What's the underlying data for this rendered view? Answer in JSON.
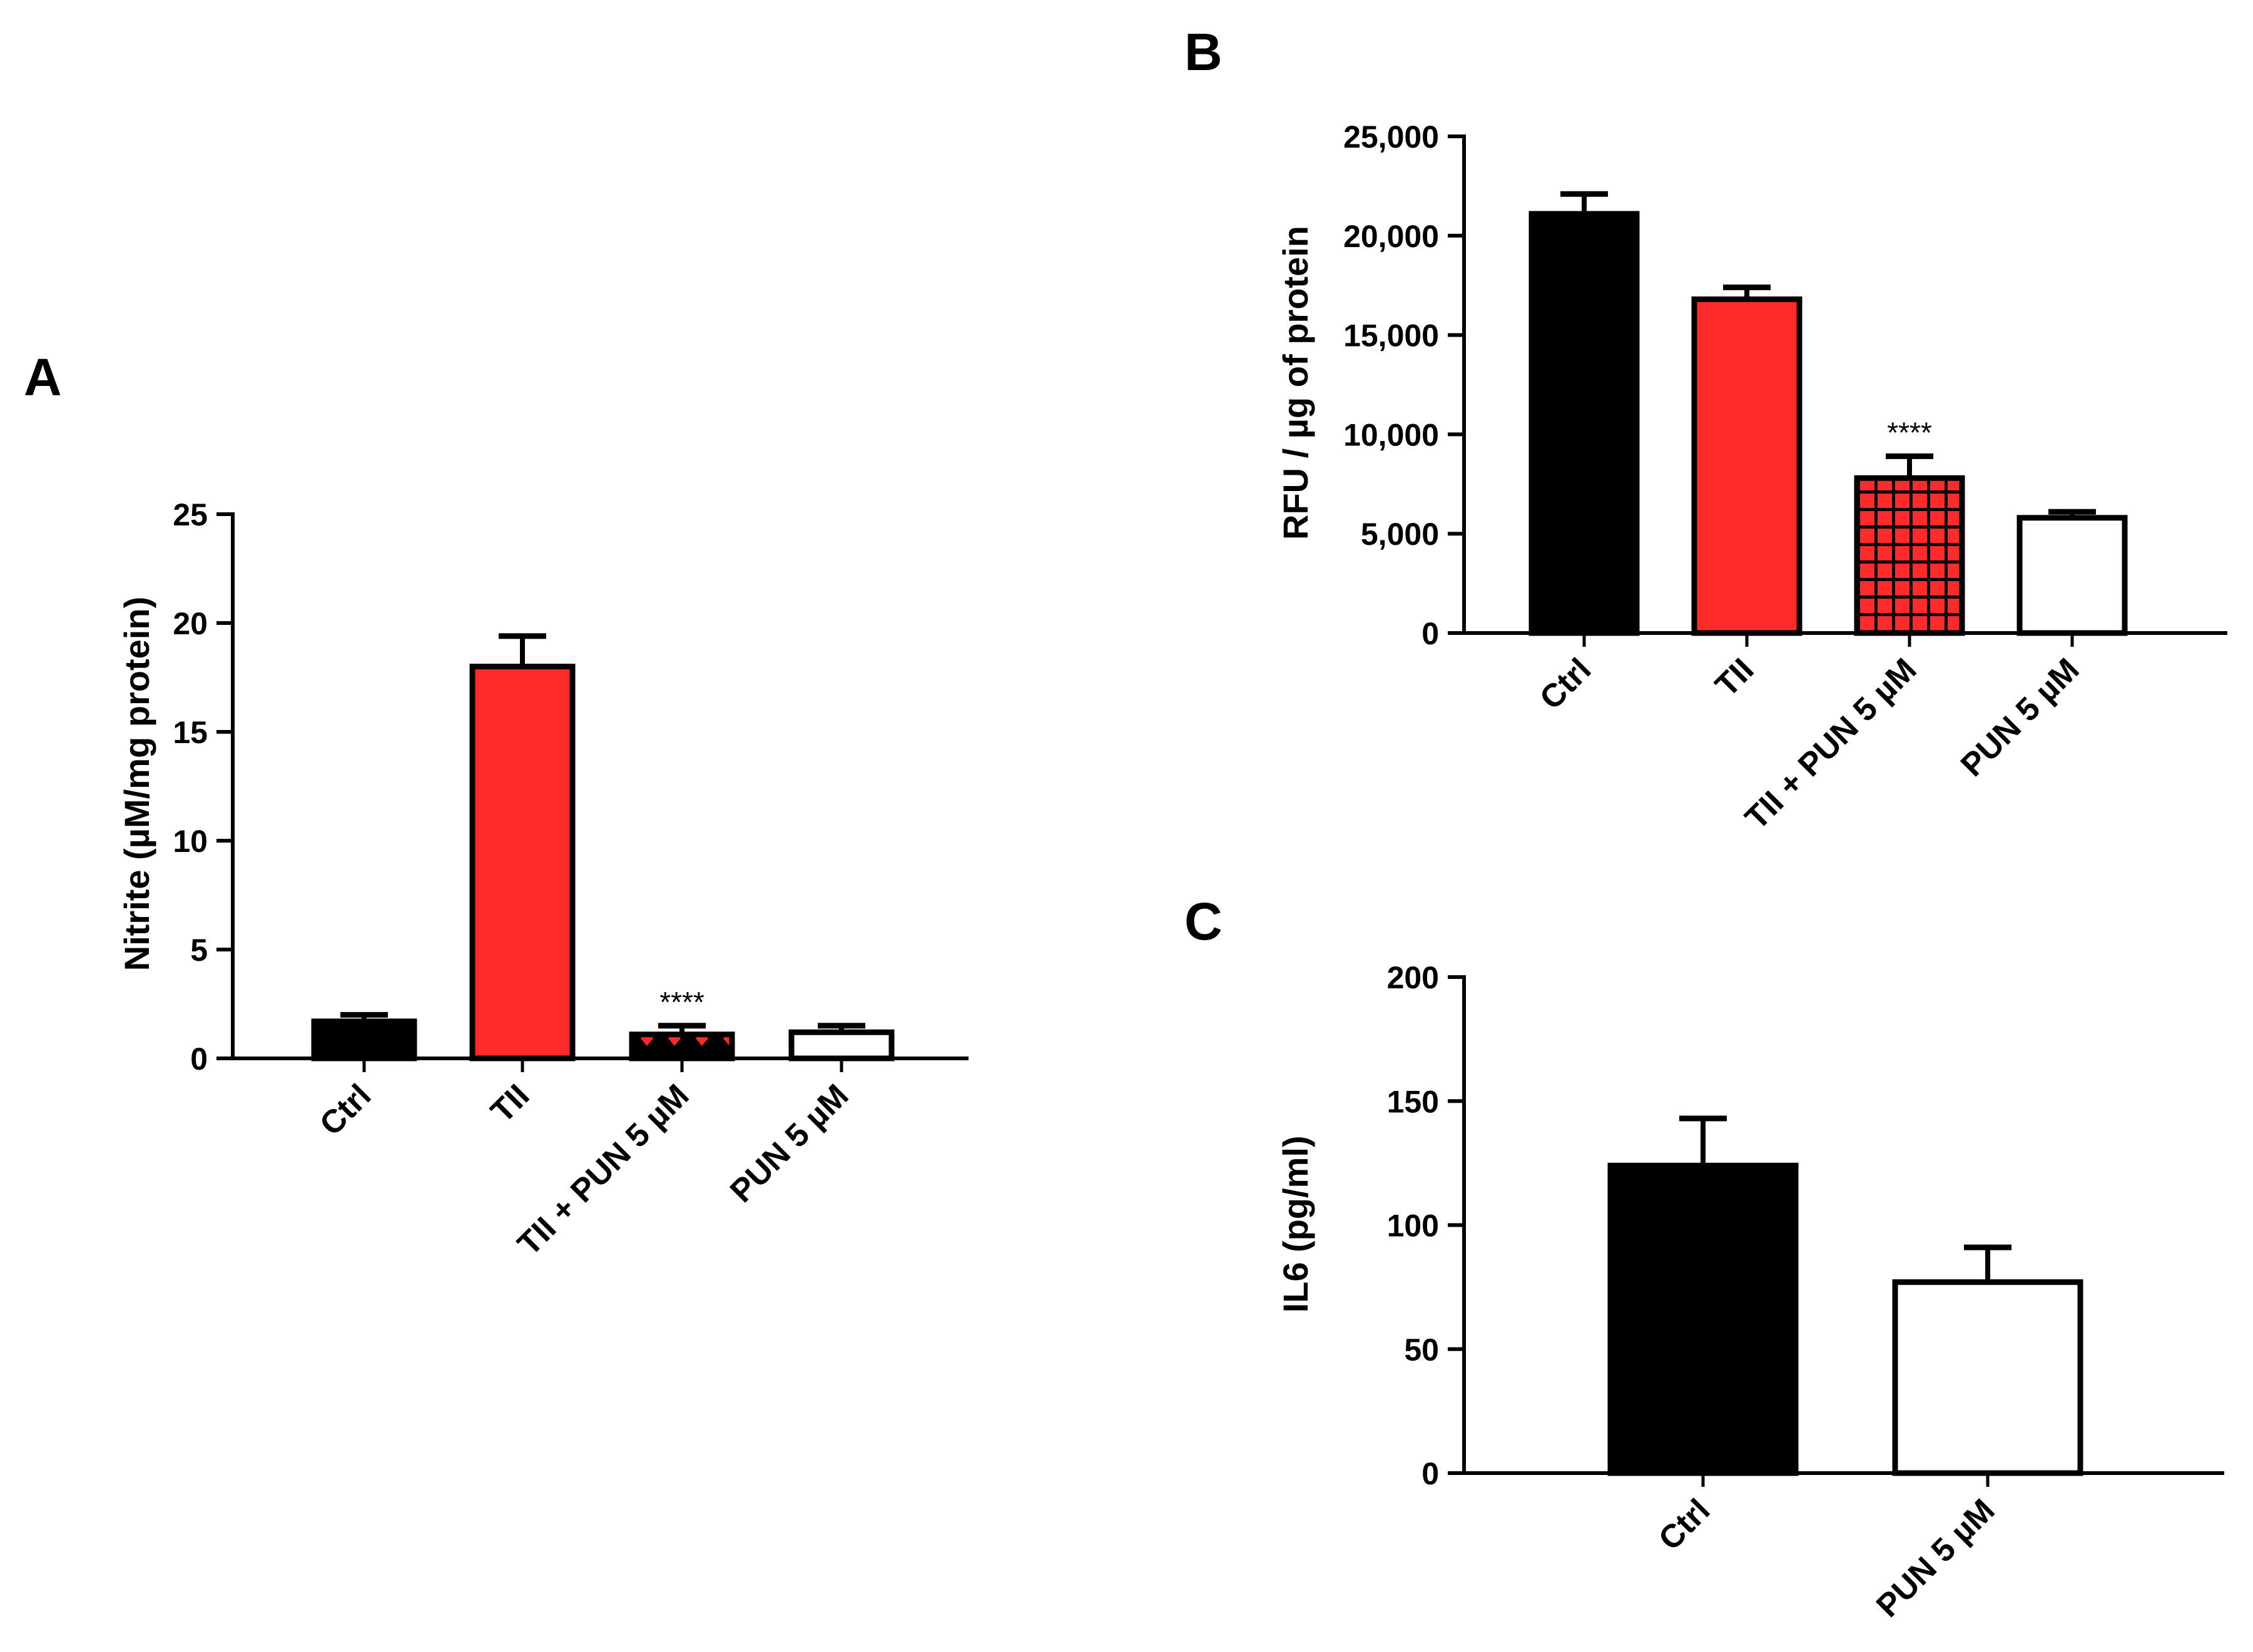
{
  "figure": {
    "panels": [
      "A",
      "B",
      "C"
    ]
  },
  "chart_data": [
    {
      "panel": "A",
      "type": "bar",
      "ylabel": "Nitrite (µM/mg protein)",
      "xlabel": "",
      "ylim": [
        0,
        25
      ],
      "yticks": [
        0,
        5,
        10,
        15,
        20,
        25
      ],
      "ytick_labels": [
        "0",
        "5",
        "10",
        "15",
        "20",
        "25"
      ],
      "categories": [
        "Ctrl",
        "TII",
        "TII + PUN 5 µM",
        "PUN 5 µM"
      ],
      "values": [
        1.7,
        18.0,
        1.1,
        1.2
      ],
      "errors": [
        0.3,
        1.4,
        0.4,
        0.3
      ],
      "fills": [
        "#000000",
        "#ff2a2a",
        "pattern-diamond",
        "#ffffff"
      ],
      "annotations": [
        {
          "category_index": 2,
          "text": "****"
        }
      ]
    },
    {
      "panel": "B",
      "type": "bar",
      "ylabel": "RFU / µg of protein",
      "xlabel": "",
      "ylim": [
        0,
        25000
      ],
      "yticks": [
        0,
        5000,
        10000,
        15000,
        20000,
        25000
      ],
      "ytick_labels": [
        "0",
        "5,000",
        "10,000",
        "15,000",
        "20,000",
        "25,000"
      ],
      "categories": [
        "Ctrl",
        "TII",
        "TII + PUN 5 µM",
        "PUN 5 µM"
      ],
      "values": [
        21100,
        16800,
        7800,
        5800
      ],
      "errors": [
        1000,
        600,
        1100,
        300
      ],
      "fills": [
        "#000000",
        "#ff2a2a",
        "pattern-grid",
        "#ffffff"
      ],
      "annotations": [
        {
          "category_index": 2,
          "text": "****"
        }
      ]
    },
    {
      "panel": "C",
      "type": "bar",
      "ylabel": "IL6 (pg/ml)",
      "xlabel": "",
      "ylim": [
        0,
        200
      ],
      "yticks": [
        0,
        50,
        100,
        150,
        200
      ],
      "ytick_labels": [
        "0",
        "50",
        "100",
        "150",
        "200"
      ],
      "categories": [
        "Ctrl",
        "PUN 5 µM"
      ],
      "values": [
        124,
        77
      ],
      "errors": [
        19,
        14
      ],
      "fills": [
        "#000000",
        "#ffffff"
      ],
      "annotations": []
    }
  ]
}
